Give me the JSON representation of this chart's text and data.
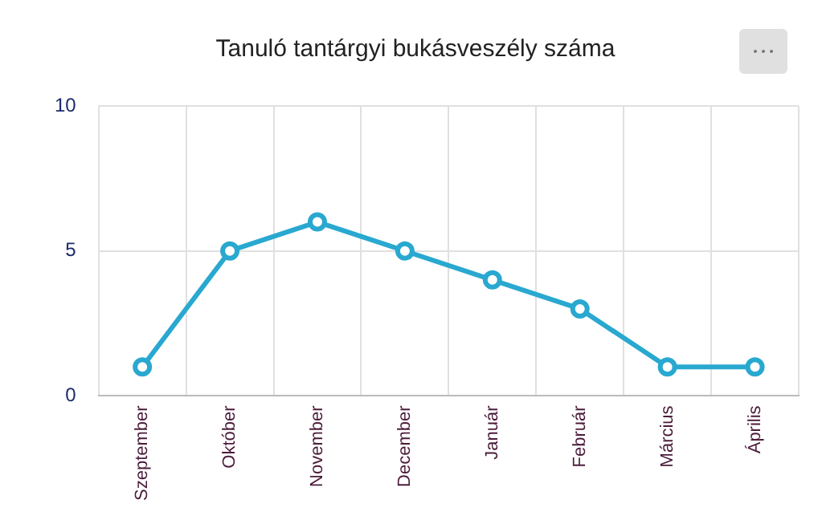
{
  "chart_data": {
    "type": "line",
    "title": "Tanuló tantárgyi bukásveszély száma",
    "categories": [
      "Szeptember",
      "Október",
      "November",
      "December",
      "Január",
      "Február",
      "Március",
      "Április"
    ],
    "series": [
      {
        "color": "#29a8d0",
        "values": [
          1,
          5,
          6,
          5,
          4,
          3,
          1,
          1
        ]
      }
    ],
    "ylim": [
      0,
      10
    ],
    "yticks": [
      0,
      5,
      10
    ],
    "grid": true,
    "legend": false,
    "marker": "circle",
    "line_style": "solid"
  }
}
